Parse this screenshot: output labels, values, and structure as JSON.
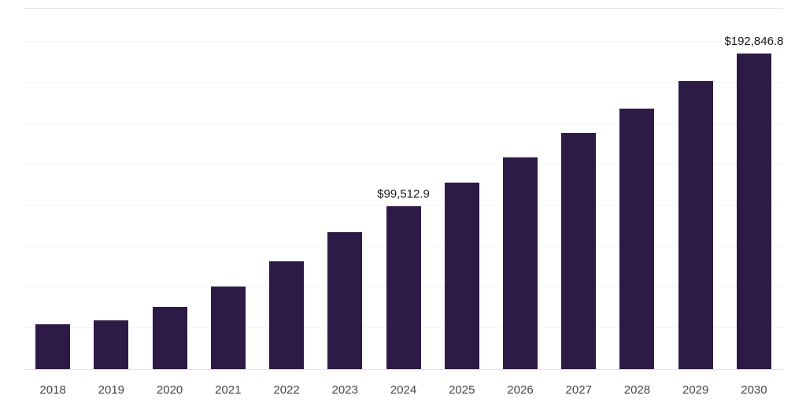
{
  "page": {
    "background": "#ffffff"
  },
  "chart_data": {
    "type": "bar",
    "title": "",
    "xlabel": "",
    "ylabel": "",
    "categories": [
      "2018",
      "2019",
      "2020",
      "2021",
      "2022",
      "2023",
      "2024",
      "2025",
      "2026",
      "2027",
      "2028",
      "2029",
      "2030"
    ],
    "values": [
      27500,
      30000,
      38000,
      50500,
      66000,
      83500,
      99512.9,
      114000,
      129000,
      144000,
      159000,
      176000,
      192846.8
    ],
    "data_labels": [
      {
        "category": "2024",
        "text": "$99,512.9"
      },
      {
        "category": "2030",
        "text": "$192,846.8"
      }
    ],
    "ylim": [
      0,
      220000
    ],
    "grid": "horizontal",
    "grid_interval": 25000,
    "legend": "none",
    "bar_color": "#2e1a47",
    "axis_label_color": "#454545",
    "data_label_color": "#1a1a1a",
    "gridline_color": "#f3f3f5"
  }
}
